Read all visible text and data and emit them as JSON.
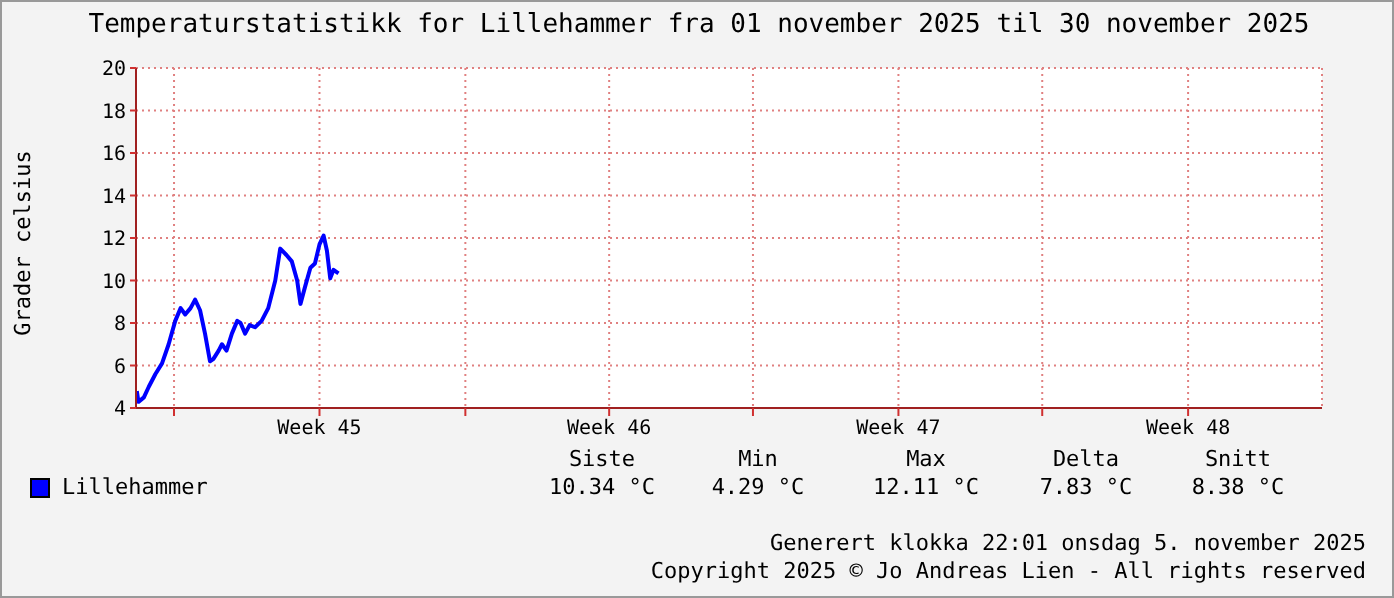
{
  "chart_data": {
    "type": "line",
    "title": "Temperaturstatistikk for Lillehammer fra 01 november 2025 til 30 november 2025",
    "ylabel": "Grader celsius",
    "x": [
      "2025-11-01T00:29",
      "2025-11-01T01:26",
      "2025-11-01T04:34",
      "2025-11-01T07:26",
      "2025-11-01T11:17",
      "2025-11-01T15:07",
      "2025-11-01T18:58",
      "2025-11-01T22:48",
      "2025-11-02T01:55",
      "2025-11-02T04:34",
      "2025-11-02T07:41",
      "2025-11-02T10:19",
      "2025-11-02T13:12",
      "2025-11-02T16:05",
      "2025-11-02T18:58",
      "2025-11-02T20:53",
      "2025-11-03T00:00",
      "2025-11-03T01:55",
      "2025-11-03T04:34",
      "2025-11-03T07:41",
      "2025-11-03T10:48",
      "2025-11-03T12:43",
      "2025-11-03T15:22",
      "2025-11-03T18:00",
      "2025-11-03T21:07",
      "2025-11-04T00:58",
      "2025-11-04T04:48",
      "2025-11-04T08:53",
      "2025-11-04T11:46",
      "2025-11-04T15:22",
      "2025-11-04T18:29",
      "2025-11-04T21:36",
      "2025-11-04T23:31",
      "2025-11-05T02:10",
      "2025-11-05T05:17",
      "2025-11-05T07:55",
      "2025-11-05T10:34",
      "2025-11-05T12:58",
      "2025-11-05T14:53",
      "2025-11-05T16:48",
      "2025-11-05T18:43",
      "2025-11-05T21:36"
    ],
    "series": [
      {
        "name": "Lillehammer",
        "color": "#0000ff",
        "values": [
          4.8,
          4.29,
          4.5,
          5.0,
          5.6,
          6.1,
          7.0,
          8.1,
          8.7,
          8.4,
          8.7,
          9.1,
          8.6,
          7.5,
          6.2,
          6.3,
          6.7,
          7.0,
          6.7,
          7.5,
          8.1,
          8.0,
          7.5,
          7.9,
          7.8,
          8.1,
          8.7,
          10.0,
          11.5,
          11.2,
          10.9,
          10.0,
          8.9,
          9.7,
          10.6,
          10.8,
          11.7,
          12.11,
          11.4,
          10.1,
          10.5,
          10.34
        ]
      }
    ],
    "xlim": [
      "2025-11-01T00:00",
      "2025-11-29T16:48"
    ],
    "xticks": [
      {
        "value": "2025-11-01T22:05",
        "label": null
      },
      {
        "value": "2025-11-05T10:34",
        "label": "Week 45"
      },
      {
        "value": "2025-11-08T23:17",
        "label": null
      },
      {
        "value": "2025-11-12T10:48",
        "label": "Week 46"
      },
      {
        "value": "2025-11-15T22:19",
        "label": null
      },
      {
        "value": "2025-11-19T10:48",
        "label": "Week 47"
      },
      {
        "value": "2025-11-22T22:19",
        "label": null
      },
      {
        "value": "2025-11-26T11:02",
        "label": "Week 48"
      }
    ],
    "ylim": [
      4,
      20
    ],
    "yticks": [
      4,
      6,
      8,
      10,
      12,
      14,
      16,
      18,
      20
    ],
    "grid": true,
    "legend": "bottom",
    "marker": "none",
    "line_style": "solid",
    "annotations": [
      "Siste",
      "Min",
      "Max",
      "Delta",
      "Snitt",
      "10.34 °C",
      "4.29 °C",
      "12.11 °C",
      "7.83 °C",
      "8.38 °C",
      "Generert klokka 22:01 onsdag 5. november 2025",
      "Copyright 2025 © Jo Andreas Lien - All rights reserved"
    ]
  }
}
